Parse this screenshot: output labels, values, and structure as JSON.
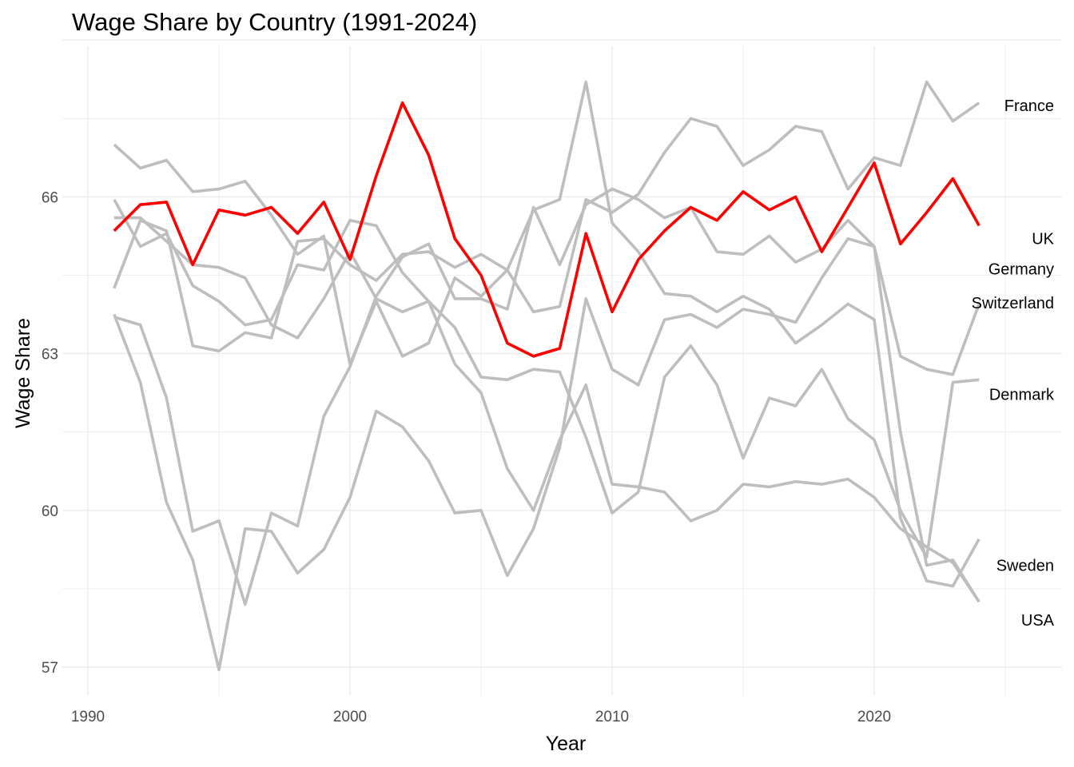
{
  "chart_data": {
    "type": "line",
    "title": "Wage Share by Country (1991-2024)",
    "xlabel": "Year",
    "ylabel": "Wage Share",
    "xlim": [
      1990,
      2026
    ],
    "ylim": [
      56.5,
      69.0
    ],
    "x_ticks": [
      1990,
      2000,
      2010,
      2020
    ],
    "y_ticks": [
      57,
      60,
      63,
      66
    ],
    "grid": true,
    "legend": "direct labels at right end of lines",
    "highlight_color": "#ff0000",
    "base_color": "#bebebe",
    "x": [
      1991,
      1992,
      1993,
      1994,
      1995,
      1996,
      1997,
      1998,
      1999,
      2000,
      2001,
      2002,
      2003,
      2004,
      2005,
      2006,
      2007,
      2008,
      2009,
      2010,
      2011,
      2012,
      2013,
      2014,
      2015,
      2016,
      2017,
      2018,
      2019,
      2020,
      2021,
      2022,
      2023,
      2024
    ],
    "series": [
      {
        "name": "France",
        "highlight": false,
        "values": [
          67.0,
          66.55,
          66.7,
          66.1,
          66.15,
          66.3,
          65.65,
          64.9,
          65.25,
          62.8,
          64.0,
          62.95,
          63.2,
          64.45,
          64.1,
          64.6,
          65.75,
          65.95,
          68.2,
          65.5,
          64.95,
          64.15,
          64.1,
          63.8,
          64.1,
          63.85,
          63.2,
          63.55,
          63.95,
          63.65,
          59.85,
          58.65,
          58.55,
          59.45
        ]
      },
      {
        "name": "UK",
        "highlight": true,
        "values": [
          65.35,
          65.85,
          65.9,
          64.7,
          65.75,
          65.65,
          65.8,
          65.3,
          65.9,
          64.8,
          66.4,
          67.8,
          66.8,
          65.2,
          64.5,
          63.2,
          62.95,
          63.1,
          65.3,
          63.8,
          64.8,
          65.35,
          65.8,
          65.55,
          66.1,
          65.75,
          66.0,
          64.95,
          65.8,
          66.65,
          65.1,
          65.7,
          66.35,
          65.45
        ]
      },
      {
        "name": "Germany",
        "highlight": false,
        "values": [
          64.25,
          65.55,
          65.35,
          63.15,
          63.05,
          63.4,
          63.3,
          65.15,
          65.2,
          64.7,
          64.4,
          64.9,
          64.95,
          64.65,
          64.9,
          64.6,
          63.8,
          63.9,
          65.95,
          65.7,
          66.05,
          66.85,
          67.5,
          67.35,
          66.6,
          66.9,
          67.35,
          67.25,
          66.15,
          66.75,
          66.6,
          68.2,
          67.45,
          67.8
        ]
      },
      {
        "name": "Switzerland",
        "highlight": false,
        "values": [
          65.95,
          65.05,
          65.3,
          64.3,
          64.0,
          63.55,
          63.65,
          64.7,
          64.6,
          65.55,
          65.45,
          64.55,
          64.0,
          62.8,
          62.25,
          60.8,
          60.0,
          61.35,
          62.4,
          60.5,
          60.45,
          60.35,
          59.8,
          60.0,
          60.5,
          60.45,
          60.55,
          60.5,
          60.6,
          60.25,
          59.65,
          59.3,
          59.0,
          58.25
        ]
      },
      {
        "name": "Denmark",
        "highlight": false,
        "values": [
          65.6,
          65.6,
          65.15,
          64.7,
          64.65,
          64.45,
          63.55,
          63.3,
          64.05,
          64.95,
          64.05,
          63.8,
          64.0,
          63.5,
          62.55,
          62.5,
          62.7,
          62.65,
          61.4,
          59.95,
          60.35,
          62.55,
          63.15,
          62.4,
          61.0,
          62.15,
          62.0,
          62.7,
          61.75,
          61.35,
          60.0,
          59.1,
          62.45,
          62.5
        ]
      },
      {
        "name": "Sweden",
        "highlight": false,
        "values": [
          63.7,
          63.55,
          62.15,
          59.6,
          59.8,
          58.2,
          59.95,
          59.7,
          61.8,
          62.75,
          64.1,
          64.85,
          65.1,
          64.05,
          64.05,
          63.85,
          65.8,
          64.7,
          65.85,
          66.15,
          65.95,
          65.6,
          65.8,
          64.95,
          64.9,
          65.25,
          64.75,
          65.0,
          65.55,
          65.05,
          62.95,
          62.7,
          62.6,
          63.95
        ]
      },
      {
        "name": "USA",
        "highlight": false,
        "values": [
          63.75,
          62.45,
          60.15,
          59.05,
          56.95,
          59.65,
          59.6,
          58.8,
          59.25,
          60.25,
          61.9,
          61.6,
          60.95,
          59.95,
          60.0,
          58.75,
          59.65,
          61.2,
          64.05,
          62.7,
          62.4,
          63.65,
          63.75,
          63.5,
          63.85,
          63.75,
          63.6,
          64.45,
          65.2,
          65.05,
          61.5,
          58.95,
          59.05,
          58.25
        ]
      }
    ],
    "direct_labels": [
      {
        "text": "France",
        "value": 67.75
      },
      {
        "text": "UK",
        "value": 65.2
      },
      {
        "text": "Germany",
        "value": 64.62
      },
      {
        "text": "Switzerland",
        "value": 63.97
      },
      {
        "text": "Denmark",
        "value": 62.22
      },
      {
        "text": "Sweden",
        "value": 58.95
      },
      {
        "text": "USA",
        "value": 57.9
      }
    ]
  }
}
